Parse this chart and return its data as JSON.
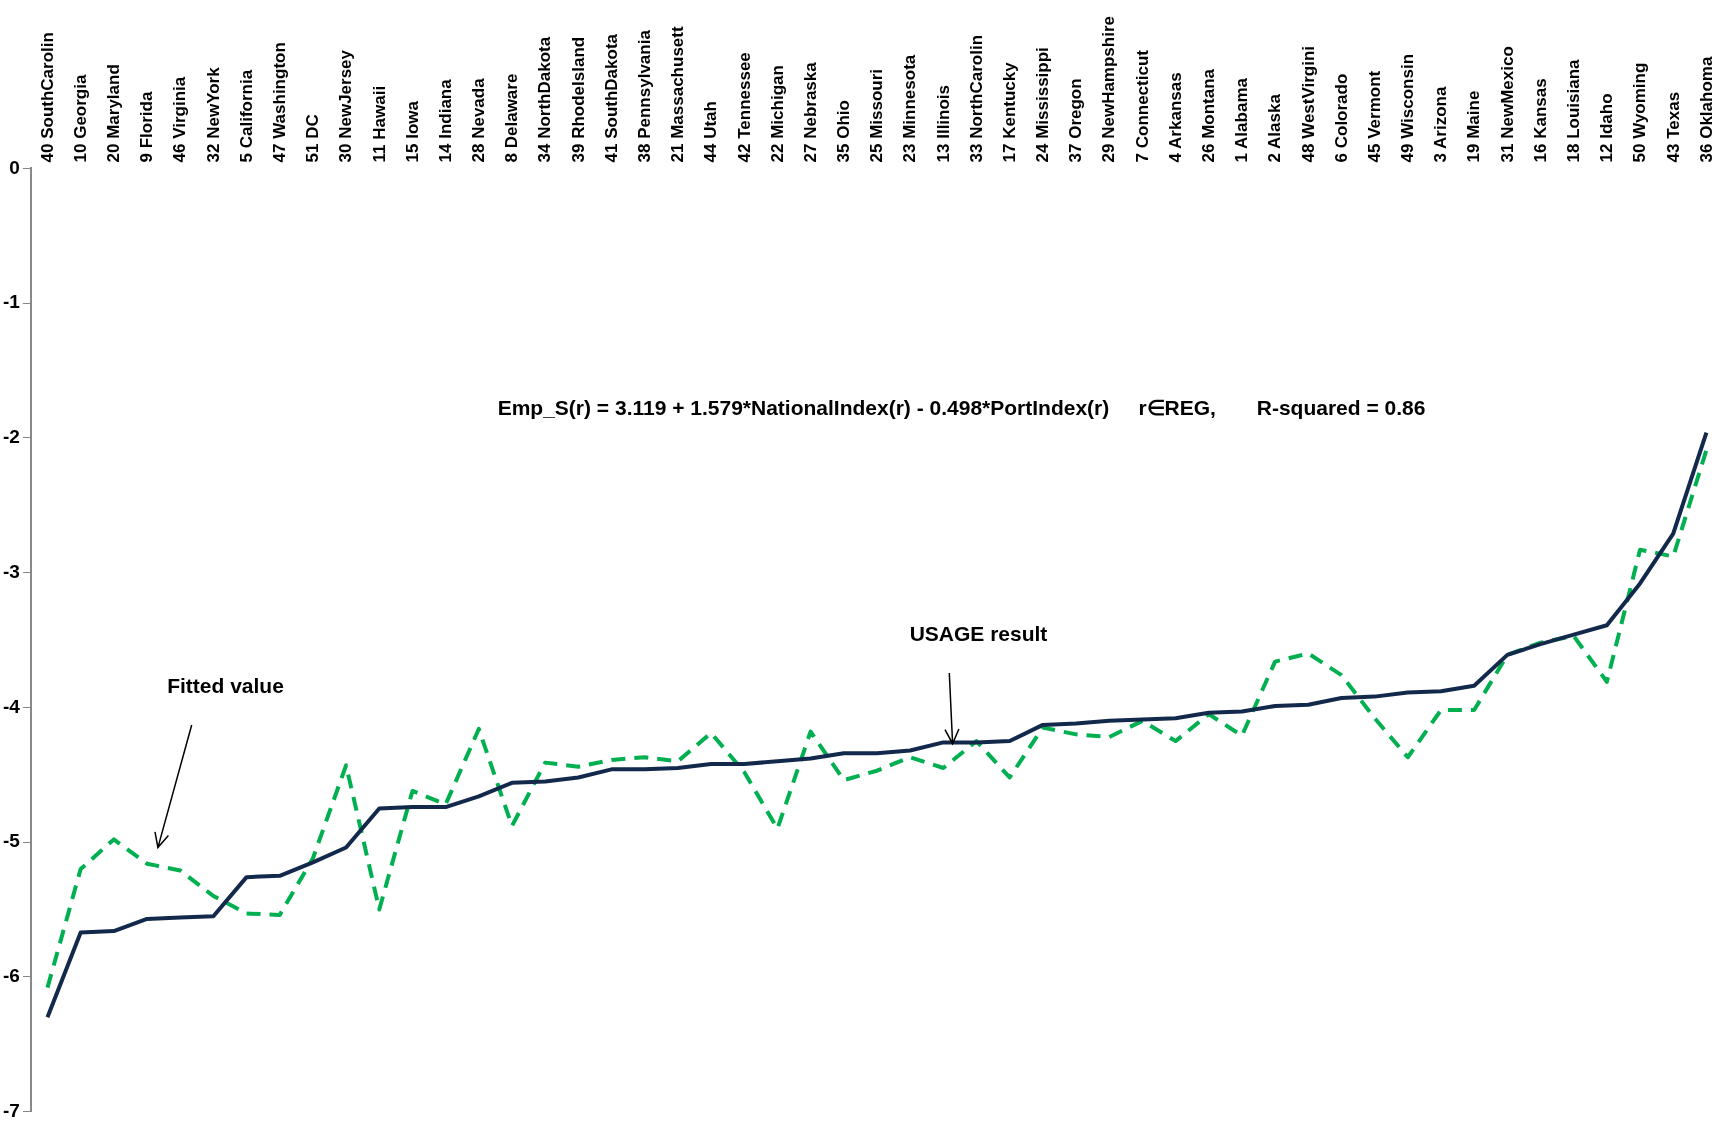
{
  "chart_data": {
    "type": "line",
    "categories": [
      "40 SouthCarolin",
      "10 Georgia",
      "20 Maryland",
      "9 Florida",
      "46 Virginia",
      "32 NewYork",
      "5 California",
      "47 Washington",
      "51 DC",
      "30 NewJersey",
      "11 Hawaii",
      "15 Iowa",
      "14 Indiana",
      "28 Nevada",
      "8 Delaware",
      "34 NorthDakota",
      "39 RhodeIsland",
      "41 SouthDakota",
      "38 Pennsylvania",
      "21 Massachusett",
      "44 Utah",
      "42 Tennessee",
      "22 Michigan",
      "27 Nebraska",
      "35 Ohio",
      "25 Missouri",
      "23 Minnesota",
      "13 Illinois",
      "33 NorthCarolin",
      "17 Kentucky",
      "24 Mississippi",
      "37 Oregon",
      "29 NewHampshire",
      "7 Connecticut",
      "4 Arkansas",
      "26 Montana",
      "1 Alabama",
      "2 Alaska",
      "48 WestVirgini",
      "6 Colorado",
      "45 Vermont",
      "49 Wisconsin",
      "3 Arizona",
      "19 Maine",
      "31 NewMexico",
      "16 Kansas",
      "18 Louisiana",
      "12 Idaho",
      "50 Wyoming",
      "43 Texas",
      "36 Oklahoma"
    ],
    "series": [
      {
        "color": "#13294b",
        "line_style": "solid",
        "values": [
          -6.3,
          -5.67,
          -5.66,
          -5.57,
          -5.56,
          -5.55,
          -5.26,
          -5.25,
          -5.15,
          -5.04,
          -4.75,
          -4.74,
          -4.74,
          -4.66,
          -4.56,
          -4.55,
          -4.52,
          -4.46,
          -4.46,
          -4.45,
          -4.42,
          -4.42,
          -4.4,
          -4.38,
          -4.34,
          -4.34,
          -4.32,
          -4.26,
          -4.26,
          -4.25,
          -4.13,
          -4.12,
          -4.1,
          -4.09,
          -4.08,
          -4.04,
          -4.03,
          -3.99,
          -3.98,
          -3.93,
          -3.92,
          -3.89,
          -3.88,
          -3.84,
          -3.61,
          -3.53,
          -3.46,
          -3.39,
          -3.08,
          -2.71,
          -1.96
        ]
      },
      {
        "color": "#00b050",
        "line_style": "dashed",
        "values": [
          -6.08,
          -5.2,
          -4.98,
          -5.16,
          -5.21,
          -5.4,
          -5.53,
          -5.54,
          -5.12,
          -4.43,
          -5.5,
          -4.62,
          -4.72,
          -4.16,
          -4.88,
          -4.41,
          -4.44,
          -4.39,
          -4.37,
          -4.4,
          -4.19,
          -4.48,
          -4.9,
          -4.18,
          -4.54,
          -4.47,
          -4.37,
          -4.45,
          -4.25,
          -4.52,
          -4.15,
          -4.2,
          -4.22,
          -4.1,
          -4.25,
          -4.05,
          -4.21,
          -3.66,
          -3.6,
          -3.76,
          -4.08,
          -4.37,
          -4.02,
          -4.02,
          -3.61,
          -3.52,
          -3.47,
          -3.81,
          -2.83,
          -2.88,
          -2.09
        ]
      }
    ],
    "ylim": [
      -7,
      0
    ],
    "yticks": [
      0,
      -1,
      -2,
      -3,
      -4,
      -5,
      -6,
      -7
    ],
    "grid": false,
    "legend": false,
    "marker": "none",
    "annotations": [
      "Emp_S(r) = 3.119 + 1.579*NationalIndex(r) - 0.498*PortIndex(r)     r∈REG,       R-squared = 0.86",
      "Fitted value",
      "USAGE result"
    ]
  }
}
